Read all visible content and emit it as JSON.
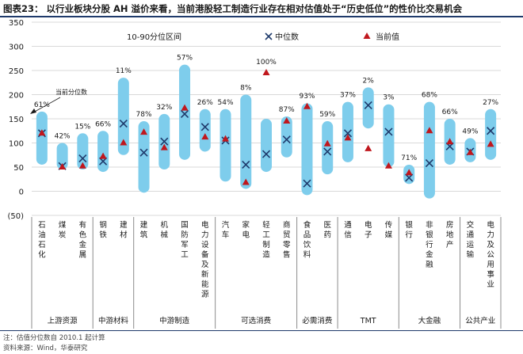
{
  "figure": {
    "title": "图表23：  以行业板块分股 AH 溢价来看，当前港股轻工制造行业存在相对估值处于“历史低位”的性价比交易机会",
    "note": "注：估值分位数自 2010.1 起计算",
    "source": "资料来源：Wind，华泰研究"
  },
  "chart_data": {
    "type": "range-bar-with-markers",
    "ylim": [
      -50,
      350
    ],
    "yticks": [
      350,
      300,
      250,
      200,
      150,
      100,
      50,
      0,
      -50
    ],
    "ytick_labels": [
      "350",
      "300",
      "250",
      "200",
      "150",
      "100",
      "50",
      "0",
      "(50)"
    ],
    "grid": true,
    "legend": {
      "placement": "top",
      "range_label": "10-90分位区间",
      "median_label": "中位数",
      "current_label": "当前值"
    },
    "annotation": "当前分位数",
    "colors": {
      "range": "#7ecdec",
      "median": "#1f3a6b",
      "current": "#c0171d",
      "grid": "#d9d9d9"
    },
    "categories": [
      {
        "name": "石油石化",
        "p10": 55,
        "p90": 165,
        "median": 120,
        "current": 120,
        "pct": "61%"
      },
      {
        "name": "煤炭",
        "p10": 45,
        "p90": 100,
        "median": 52,
        "current": 50,
        "pct": "42%"
      },
      {
        "name": "有色金属",
        "p10": 45,
        "p90": 120,
        "median": 68,
        "current": 52,
        "pct": "15%"
      },
      {
        "name": "钢铁",
        "p10": 40,
        "p90": 125,
        "median": 62,
        "current": 72,
        "pct": "66%"
      },
      {
        "name": "建材",
        "p10": 75,
        "p90": 235,
        "median": 140,
        "current": 100,
        "pct": "11%"
      },
      {
        "name": "建筑",
        "p10": -3,
        "p90": 145,
        "median": 80,
        "current": 122,
        "pct": "78%"
      },
      {
        "name": "机械",
        "p10": 45,
        "p90": 160,
        "median": 103,
        "current": 90,
        "pct": "32%"
      },
      {
        "name": "国防军工",
        "p10": 65,
        "p90": 262,
        "median": 160,
        "current": 172,
        "pct": "57%"
      },
      {
        "name": "电力设备及新能源",
        "p10": 82,
        "p90": 170,
        "median": 133,
        "current": 112,
        "pct": "26%"
      },
      {
        "name": "汽车",
        "p10": 20,
        "p90": 170,
        "median": 105,
        "current": 108,
        "pct": "54%"
      },
      {
        "name": "家电",
        "p10": 5,
        "p90": 200,
        "median": 55,
        "current": 18,
        "pct": "8%"
      },
      {
        "name": "轻工制造",
        "p10": 40,
        "p90": 150,
        "median": 77,
        "current": 245,
        "pct": "100%"
      },
      {
        "name": "商贸零售",
        "p10": 70,
        "p90": 155,
        "median": 107,
        "current": 145,
        "pct": "87%"
      },
      {
        "name": "食品饮料",
        "p10": -8,
        "p90": 182,
        "median": 16,
        "current": 175,
        "pct": "93%"
      },
      {
        "name": "医药",
        "p10": 35,
        "p90": 145,
        "median": 82,
        "current": 98,
        "pct": "59%"
      },
      {
        "name": "通信",
        "p10": 60,
        "p90": 185,
        "median": 120,
        "current": 110,
        "pct": "37%"
      },
      {
        "name": "电子",
        "p10": 130,
        "p90": 215,
        "median": 178,
        "current": 88,
        "pct": "2%"
      },
      {
        "name": "传媒",
        "p10": 50,
        "p90": 180,
        "median": 123,
        "current": 52,
        "pct": "3%"
      },
      {
        "name": "银行",
        "p10": 15,
        "p90": 55,
        "median": 28,
        "current": 38,
        "pct": "71%"
      },
      {
        "name": "非银行金融",
        "p10": -15,
        "p90": 185,
        "median": 58,
        "current": 125,
        "pct": "68%"
      },
      {
        "name": "房地产",
        "p10": 55,
        "p90": 150,
        "median": 93,
        "current": 102,
        "pct": "66%"
      },
      {
        "name": "交通运输",
        "p10": 60,
        "p90": 110,
        "median": 82,
        "current": 80,
        "pct": "49%"
      },
      {
        "name": "电力及公用事业",
        "p10": 65,
        "p90": 170,
        "median": 125,
        "current": 97,
        "pct": "27%"
      }
    ],
    "groups": [
      {
        "name": "上游资源",
        "start": 0,
        "end": 2
      },
      {
        "name": "中游材料",
        "start": 3,
        "end": 4
      },
      {
        "name": "中游制造",
        "start": 5,
        "end": 8
      },
      {
        "name": "可选消费",
        "start": 9,
        "end": 12
      },
      {
        "name": "必需消费",
        "start": 13,
        "end": 14
      },
      {
        "name": "TMT",
        "start": 15,
        "end": 17
      },
      {
        "name": "大金融",
        "start": 18,
        "end": 20
      },
      {
        "name": "公共产业",
        "start": 21,
        "end": 22
      }
    ]
  }
}
